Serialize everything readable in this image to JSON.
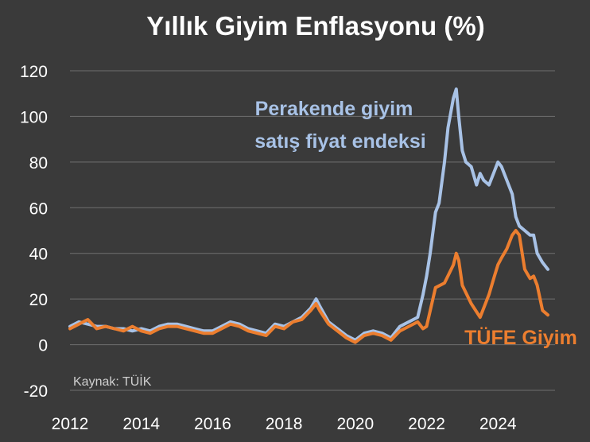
{
  "chart_data": {
    "type": "line",
    "title": "Yıllık Giyim Enflasyonu (%)",
    "source": "Kaynak: TÜİK",
    "xlabel": "",
    "ylabel": "",
    "xlim": [
      2012,
      2025.6
    ],
    "ylim": [
      -20,
      120
    ],
    "x_ticks": [
      "2012",
      "2014",
      "2016",
      "2018",
      "2020",
      "2022",
      "2024"
    ],
    "y_ticks": [
      "-20",
      "0",
      "20",
      "40",
      "60",
      "80",
      "100",
      "120"
    ],
    "grid": true,
    "series": [
      {
        "name": "Perakende giyim satış fiyat endeksi",
        "label_lines": [
          "Perakende giyim",
          "satış fiyat endeksi"
        ],
        "color": "#a8c2e6",
        "x": [
          2012.0,
          2012.25,
          2012.5,
          2012.75,
          2013.0,
          2013.25,
          2013.5,
          2013.75,
          2014.0,
          2014.25,
          2014.5,
          2014.75,
          2015.0,
          2015.25,
          2015.5,
          2015.75,
          2016.0,
          2016.25,
          2016.5,
          2016.75,
          2017.0,
          2017.25,
          2017.5,
          2017.75,
          2018.0,
          2018.25,
          2018.5,
          2018.75,
          2018.9,
          2019.0,
          2019.25,
          2019.5,
          2019.75,
          2020.0,
          2020.25,
          2020.5,
          2020.75,
          2021.0,
          2021.25,
          2021.5,
          2021.75,
          2021.9,
          2022.0,
          2022.1,
          2022.25,
          2022.35,
          2022.5,
          2022.6,
          2022.75,
          2022.83,
          2022.9,
          2023.0,
          2023.1,
          2023.25,
          2023.4,
          2023.5,
          2023.6,
          2023.75,
          2023.9,
          2024.0,
          2024.1,
          2024.25,
          2024.4,
          2024.5,
          2024.6,
          2024.75,
          2024.9,
          2025.0,
          2025.1,
          2025.25,
          2025.4
        ],
        "values": [
          8,
          10,
          9,
          8,
          8,
          7,
          7,
          6,
          7,
          6,
          8,
          9,
          9,
          8,
          7,
          6,
          6,
          8,
          10,
          9,
          7,
          6,
          5,
          9,
          8,
          10,
          12,
          16,
          20,
          17,
          10,
          7,
          4,
          2,
          5,
          6,
          5,
          3,
          8,
          10,
          12,
          22,
          30,
          40,
          58,
          62,
          80,
          95,
          108,
          112,
          100,
          85,
          80,
          78,
          70,
          75,
          72,
          70,
          76,
          80,
          78,
          72,
          66,
          56,
          52,
          50,
          48,
          48,
          40,
          36,
          33
        ]
      },
      {
        "name": "TÜFE Giyim",
        "label_lines": [
          "TÜFE Giyim"
        ],
        "color": "#ec7e2f",
        "x": [
          2012.0,
          2012.25,
          2012.5,
          2012.75,
          2013.0,
          2013.25,
          2013.5,
          2013.75,
          2014.0,
          2014.25,
          2014.5,
          2014.75,
          2015.0,
          2015.25,
          2015.5,
          2015.75,
          2016.0,
          2016.25,
          2016.5,
          2016.75,
          2017.0,
          2017.25,
          2017.5,
          2017.75,
          2018.0,
          2018.25,
          2018.5,
          2018.75,
          2018.9,
          2019.0,
          2019.25,
          2019.5,
          2019.75,
          2020.0,
          2020.25,
          2020.5,
          2020.75,
          2021.0,
          2021.25,
          2021.5,
          2021.75,
          2021.9,
          2022.0,
          2022.25,
          2022.5,
          2022.75,
          2022.83,
          2022.9,
          2023.0,
          2023.25,
          2023.5,
          2023.75,
          2023.9,
          2024.0,
          2024.1,
          2024.25,
          2024.4,
          2024.5,
          2024.6,
          2024.75,
          2024.9,
          2025.0,
          2025.1,
          2025.25,
          2025.4
        ],
        "values": [
          7,
          9,
          11,
          7,
          8,
          7,
          6,
          8,
          6,
          5,
          7,
          8,
          8,
          7,
          6,
          5,
          5,
          7,
          9,
          8,
          6,
          5,
          4,
          8,
          7,
          10,
          11,
          15,
          18,
          15,
          9,
          6,
          3,
          1,
          4,
          5,
          4,
          2,
          6,
          8,
          10,
          7,
          8,
          25,
          27,
          35,
          40,
          37,
          26,
          18,
          12,
          22,
          30,
          35,
          38,
          42,
          48,
          50,
          48,
          33,
          29,
          30,
          26,
          15,
          13
        ]
      }
    ]
  }
}
